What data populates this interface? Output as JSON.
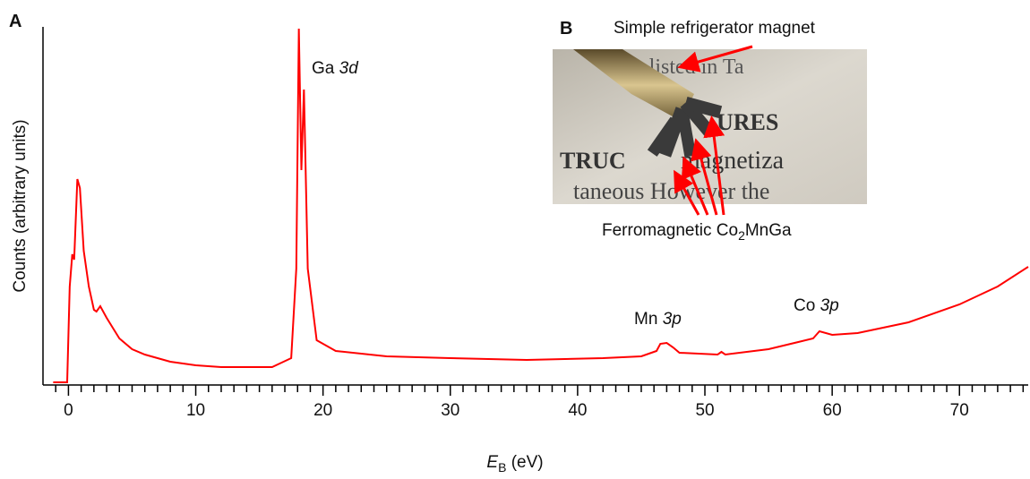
{
  "chart_data": {
    "type": "line",
    "panel_label": "A",
    "ylabel": "Counts (arbitrary units)",
    "xlabel": {
      "symbol": "E",
      "subscript": "B",
      "unit": " (eV)"
    },
    "color": "#ff0000",
    "x": [
      -1.2,
      -0.1,
      0.1,
      0.3,
      0.45,
      0.7,
      0.9,
      1.2,
      1.6,
      2.0,
      2.2,
      2.5,
      3,
      4,
      5,
      6,
      8,
      10,
      12,
      16,
      17.5,
      17.9,
      18.1,
      18.3,
      18.5,
      18.8,
      19.5,
      21,
      25,
      30,
      36,
      42,
      45,
      46.2,
      46.5,
      47,
      47.5,
      48,
      51,
      51.3,
      51.6,
      55,
      58.5,
      59,
      60,
      62,
      66,
      70,
      73,
      75.4
    ],
    "values": [
      0.75,
      0.75,
      27.5,
      36.5,
      35,
      57.5,
      55,
      37.5,
      27.5,
      21,
      20.5,
      22,
      18.75,
      13,
      10,
      8.5,
      6.5,
      5.5,
      5,
      5,
      7.5,
      32.5,
      99.5,
      60,
      82.5,
      32.5,
      12.5,
      9.5,
      8,
      7.5,
      7,
      7.5,
      8,
      9.5,
      11.5,
      11.75,
      10.5,
      9,
      8.5,
      9.25,
      8.5,
      10,
      13,
      15,
      14,
      14.5,
      17.5,
      22.5,
      27.5,
      33
    ],
    "xlim": [
      -2,
      75.4
    ],
    "ylim": [
      0,
      100
    ],
    "xticks": [
      0,
      10,
      20,
      30,
      40,
      50,
      60,
      70
    ],
    "xminorticks": [
      -1,
      1,
      2,
      3,
      4,
      5,
      6,
      7,
      8,
      9,
      11,
      12,
      13,
      14,
      15,
      16,
      17,
      18,
      19,
      21,
      22,
      23,
      24,
      25,
      26,
      27,
      28,
      29,
      31,
      32,
      33,
      34,
      35,
      36,
      37,
      38,
      39,
      41,
      42,
      43,
      44,
      45,
      46,
      47,
      48,
      49,
      51,
      52,
      53,
      54,
      55,
      56,
      57,
      58,
      59,
      61,
      62,
      63,
      64,
      65,
      66,
      67,
      68,
      69,
      71,
      72,
      73,
      74,
      75
    ],
    "annotations": [
      {
        "element": "Ga ",
        "orbital": "3d"
      },
      {
        "element": "Mn ",
        "orbital": "3p"
      },
      {
        "element": "Co ",
        "orbital": "3p"
      }
    ],
    "inset": {
      "label": "B",
      "magnet_label": "Simple refrigerator magnet",
      "sample_label": [
        "Ferromagnetic Co",
        "2",
        "MnGa"
      ]
    }
  }
}
